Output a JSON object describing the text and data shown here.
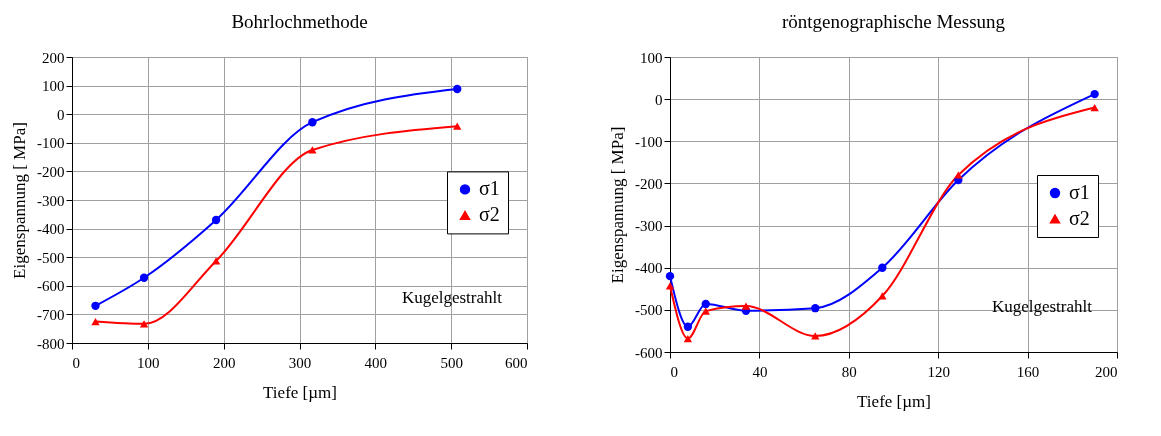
{
  "chart_data": [
    {
      "type": "line",
      "title": "Bohrlochmethode",
      "xlabel": "Tiefe [µm]",
      "ylabel": "Eigenspannung [ MPa]",
      "xlim": [
        0,
        600
      ],
      "xticks": [
        0,
        100,
        200,
        300,
        400,
        500,
        600
      ],
      "ylim": [
        -800,
        200
      ],
      "yticks": [
        -800,
        -700,
        -600,
        -500,
        -400,
        -300,
        -200,
        -100,
        0,
        100,
        200
      ],
      "grid": true,
      "legend": "right",
      "annotations": [
        "Kugelgestrahlt"
      ],
      "x": [
        31,
        95,
        190,
        317,
        508
      ],
      "series": [
        {
          "name": "σ1",
          "color": "#0000ff",
          "marker": "circle",
          "values": [
            -670,
            -572,
            -370,
            -28,
            88
          ]
        },
        {
          "name": "σ2",
          "color": "#ff0000",
          "marker": "triangle",
          "values": [
            -725,
            -733,
            -513,
            -125,
            -42
          ]
        }
      ]
    },
    {
      "type": "line",
      "title": "röntgenographische Messung",
      "xlabel": "Tiefe [µm]",
      "ylabel": "Eigenspannung [ MPa]",
      "xlim": [
        0,
        200
      ],
      "xticks": [
        0,
        40,
        80,
        120,
        160,
        200
      ],
      "ylim": [
        -600,
        100
      ],
      "yticks": [
        -600,
        -500,
        -400,
        -300,
        -200,
        -100,
        0,
        100
      ],
      "grid": true,
      "legend": "right",
      "annotations": [
        "Kugelgestrahlt"
      ],
      "x": [
        0,
        8,
        16,
        34,
        65,
        95,
        129,
        190
      ],
      "series": [
        {
          "name": "σ1",
          "color": "#0000ff",
          "marker": "circle",
          "values": [
            -420,
            -540,
            -486,
            -502,
            -496,
            -400,
            -192,
            12
          ]
        },
        {
          "name": "σ2",
          "color": "#ff0000",
          "marker": "triangle",
          "values": [
            -443,
            -568,
            -503,
            -491,
            -562,
            -467,
            -180,
            -20
          ]
        }
      ]
    }
  ]
}
